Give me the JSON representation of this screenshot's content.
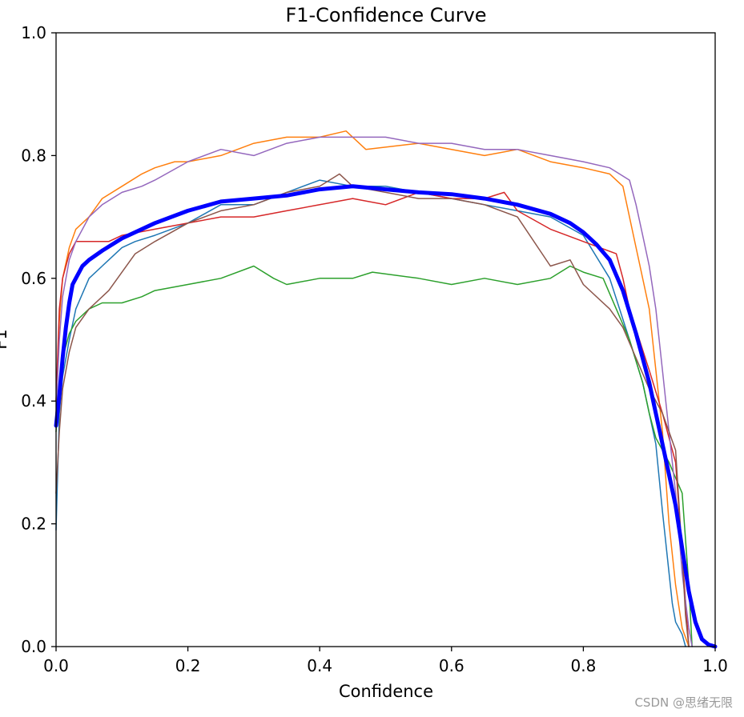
{
  "chart_data": {
    "type": "line",
    "title": "F1-Confidence Curve",
    "xlabel": "Confidence",
    "ylabel": "F1",
    "xlim": [
      0.0,
      1.0
    ],
    "ylim": [
      0.0,
      1.0
    ],
    "xticks": [
      "0.0",
      "0.2",
      "0.4",
      "0.6",
      "0.8",
      "1.0"
    ],
    "yticks": [
      "0.0",
      "0.2",
      "0.4",
      "0.6",
      "0.8",
      "1.0"
    ],
    "grid": false,
    "series": [
      {
        "color": "#1f77b4",
        "width": 1.5,
        "x": [
          0.0,
          0.005,
          0.01,
          0.02,
          0.03,
          0.05,
          0.08,
          0.1,
          0.12,
          0.15,
          0.2,
          0.25,
          0.3,
          0.35,
          0.4,
          0.45,
          0.5,
          0.55,
          0.6,
          0.65,
          0.7,
          0.75,
          0.8,
          0.84,
          0.87,
          0.89,
          0.91,
          0.92,
          0.93,
          0.935,
          0.94,
          0.95,
          0.955
        ],
        "y": [
          0.19,
          0.38,
          0.44,
          0.5,
          0.55,
          0.6,
          0.63,
          0.65,
          0.66,
          0.67,
          0.69,
          0.72,
          0.72,
          0.74,
          0.76,
          0.75,
          0.75,
          0.74,
          0.73,
          0.72,
          0.71,
          0.7,
          0.67,
          0.6,
          0.5,
          0.43,
          0.33,
          0.22,
          0.12,
          0.07,
          0.04,
          0.02,
          0.0
        ]
      },
      {
        "color": "#ff7f0e",
        "width": 1.5,
        "x": [
          0.0,
          0.005,
          0.01,
          0.02,
          0.03,
          0.05,
          0.07,
          0.1,
          0.13,
          0.15,
          0.18,
          0.2,
          0.25,
          0.3,
          0.35,
          0.4,
          0.44,
          0.47,
          0.55,
          0.6,
          0.65,
          0.7,
          0.75,
          0.8,
          0.84,
          0.86,
          0.88,
          0.9,
          0.92,
          0.93,
          0.94,
          0.95,
          0.96
        ],
        "y": [
          0.4,
          0.53,
          0.6,
          0.65,
          0.68,
          0.7,
          0.73,
          0.75,
          0.77,
          0.78,
          0.79,
          0.79,
          0.8,
          0.82,
          0.83,
          0.83,
          0.84,
          0.81,
          0.82,
          0.81,
          0.8,
          0.81,
          0.79,
          0.78,
          0.77,
          0.75,
          0.65,
          0.55,
          0.35,
          0.2,
          0.1,
          0.03,
          0.0
        ]
      },
      {
        "color": "#2ca02c",
        "width": 1.5,
        "x": [
          0.0,
          0.005,
          0.01,
          0.02,
          0.03,
          0.05,
          0.07,
          0.1,
          0.13,
          0.15,
          0.2,
          0.25,
          0.3,
          0.33,
          0.35,
          0.4,
          0.45,
          0.48,
          0.55,
          0.6,
          0.65,
          0.7,
          0.75,
          0.78,
          0.8,
          0.83,
          0.85,
          0.87,
          0.89,
          0.9,
          0.91,
          0.93,
          0.95,
          0.96,
          0.965
        ],
        "y": [
          0.35,
          0.42,
          0.47,
          0.51,
          0.53,
          0.55,
          0.56,
          0.56,
          0.57,
          0.58,
          0.59,
          0.6,
          0.62,
          0.6,
          0.59,
          0.6,
          0.6,
          0.61,
          0.6,
          0.59,
          0.6,
          0.59,
          0.6,
          0.62,
          0.61,
          0.6,
          0.55,
          0.5,
          0.43,
          0.38,
          0.34,
          0.3,
          0.25,
          0.1,
          0.0
        ]
      },
      {
        "color": "#d62728",
        "width": 1.5,
        "x": [
          0.0,
          0.005,
          0.01,
          0.02,
          0.03,
          0.04,
          0.05,
          0.08,
          0.1,
          0.15,
          0.2,
          0.25,
          0.3,
          0.35,
          0.4,
          0.45,
          0.5,
          0.55,
          0.6,
          0.65,
          0.68,
          0.7,
          0.75,
          0.8,
          0.85,
          0.86,
          0.87,
          0.9,
          0.92,
          0.94,
          0.95,
          0.96
        ],
        "y": [
          0.4,
          0.55,
          0.6,
          0.64,
          0.66,
          0.66,
          0.66,
          0.66,
          0.67,
          0.68,
          0.69,
          0.7,
          0.7,
          0.71,
          0.72,
          0.73,
          0.72,
          0.74,
          0.73,
          0.73,
          0.74,
          0.71,
          0.68,
          0.66,
          0.64,
          0.6,
          0.55,
          0.45,
          0.38,
          0.3,
          0.15,
          0.0
        ]
      },
      {
        "color": "#9467bd",
        "width": 1.5,
        "x": [
          0.0,
          0.005,
          0.01,
          0.02,
          0.03,
          0.05,
          0.07,
          0.1,
          0.13,
          0.15,
          0.2,
          0.25,
          0.3,
          0.35,
          0.4,
          0.45,
          0.5,
          0.55,
          0.6,
          0.65,
          0.7,
          0.75,
          0.8,
          0.84,
          0.87,
          0.88,
          0.89,
          0.9,
          0.91,
          0.92,
          0.93,
          0.94,
          0.95,
          0.96,
          0.965
        ],
        "y": [
          0.38,
          0.5,
          0.57,
          0.63,
          0.66,
          0.7,
          0.72,
          0.74,
          0.75,
          0.76,
          0.79,
          0.81,
          0.8,
          0.82,
          0.83,
          0.83,
          0.83,
          0.82,
          0.82,
          0.81,
          0.81,
          0.8,
          0.79,
          0.78,
          0.76,
          0.72,
          0.67,
          0.62,
          0.55,
          0.45,
          0.35,
          0.25,
          0.12,
          0.03,
          0.0
        ]
      },
      {
        "color": "#8c564b",
        "width": 1.5,
        "x": [
          0.0,
          0.005,
          0.01,
          0.02,
          0.03,
          0.05,
          0.08,
          0.1,
          0.12,
          0.15,
          0.2,
          0.25,
          0.3,
          0.35,
          0.4,
          0.43,
          0.45,
          0.5,
          0.55,
          0.6,
          0.65,
          0.7,
          0.75,
          0.78,
          0.8,
          0.84,
          0.86,
          0.88,
          0.9,
          0.92,
          0.94,
          0.95,
          0.955,
          0.96
        ],
        "y": [
          0.25,
          0.35,
          0.42,
          0.48,
          0.52,
          0.55,
          0.58,
          0.61,
          0.64,
          0.66,
          0.69,
          0.71,
          0.72,
          0.74,
          0.75,
          0.77,
          0.75,
          0.74,
          0.73,
          0.73,
          0.72,
          0.7,
          0.62,
          0.63,
          0.59,
          0.55,
          0.52,
          0.47,
          0.42,
          0.38,
          0.32,
          0.15,
          0.05,
          0.0
        ]
      },
      {
        "color": "#0000ff",
        "width": 5,
        "x": [
          0.0,
          0.005,
          0.01,
          0.015,
          0.02,
          0.025,
          0.03,
          0.04,
          0.05,
          0.07,
          0.1,
          0.15,
          0.2,
          0.25,
          0.3,
          0.35,
          0.4,
          0.45,
          0.5,
          0.55,
          0.6,
          0.65,
          0.7,
          0.75,
          0.78,
          0.8,
          0.82,
          0.84,
          0.86,
          0.88,
          0.9,
          0.91,
          0.92,
          0.93,
          0.94,
          0.95,
          0.96,
          0.97,
          0.98,
          0.99,
          1.0
        ],
        "y": [
          0.36,
          0.41,
          0.47,
          0.52,
          0.56,
          0.59,
          0.6,
          0.62,
          0.63,
          0.645,
          0.665,
          0.69,
          0.71,
          0.725,
          0.73,
          0.735,
          0.745,
          0.75,
          0.745,
          0.74,
          0.737,
          0.73,
          0.72,
          0.705,
          0.69,
          0.675,
          0.655,
          0.63,
          0.58,
          0.51,
          0.43,
          0.38,
          0.33,
          0.28,
          0.23,
          0.16,
          0.09,
          0.04,
          0.012,
          0.003,
          0.0
        ]
      }
    ]
  },
  "watermark": "CSDN @思绪无限"
}
